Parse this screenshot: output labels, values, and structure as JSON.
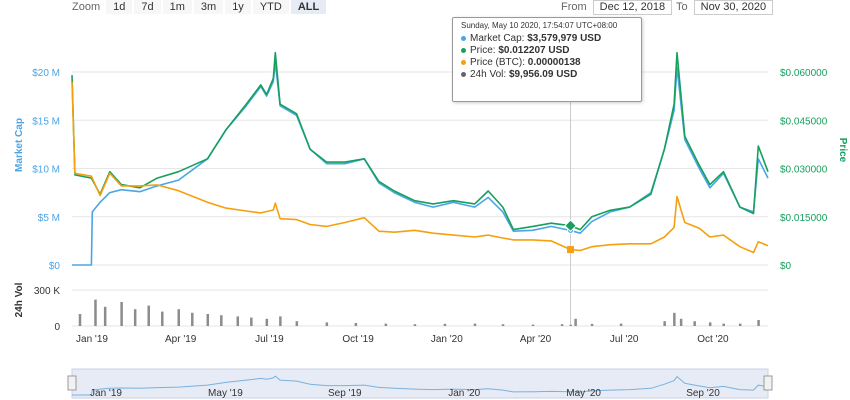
{
  "toolbar": {
    "zoom_label": "Zoom",
    "zoom_buttons": [
      "1d",
      "7d",
      "1m",
      "3m",
      "1y",
      "YTD",
      "ALL"
    ],
    "active": "ALL",
    "from_label": "From",
    "from_value": "Dec 12, 2018",
    "to_label": "To",
    "to_value": "Nov 30, 2020"
  },
  "tooltip": {
    "date": "Sunday, May 10 2020, 17:54:07 UTC+08:00",
    "rows": [
      {
        "label": "Market Cap:",
        "value": "$3,579,979 USD",
        "color": "#4ba5e5"
      },
      {
        "label": "Price:",
        "value": "$0.012207 USD",
        "color": "#16a05d"
      },
      {
        "label": "Price (BTC):",
        "value": "0.00000138",
        "color": "#f5a00e"
      },
      {
        "label": "24h Vol:",
        "value": "$9,956.09 USD",
        "color": "#666666"
      }
    ]
  },
  "chart_data": {
    "type": "line",
    "x_ticks": [
      "Jan '19",
      "Apr '19",
      "Jul '19",
      "Oct '19",
      "Jan '20",
      "Apr '20",
      "Jul '20",
      "Oct '20"
    ],
    "navigator_ticks": [
      "Jan '19",
      "May '19",
      "Sep '19",
      "Jan '20",
      "May '20",
      "Sep '20"
    ],
    "y_left": {
      "label": "Market Cap",
      "ticks": [
        "$0",
        "$5 M",
        "$10 M",
        "$15 M",
        "$20 M"
      ],
      "range": [
        0,
        20000000
      ],
      "color": "#4ba5e5"
    },
    "y_right": {
      "label": "Price",
      "ticks": [
        "$0",
        "$0.015000",
        "$0.030000",
        "$0.045000",
        "$0.060000"
      ],
      "range": [
        0,
        0.06
      ],
      "color": "#16a05d"
    },
    "volume": {
      "label": "24h Vol",
      "ticks": [
        "0",
        "300 K"
      ],
      "range": [
        0,
        400000
      ]
    },
    "series": [
      {
        "name": "Market Cap",
        "color": "#4ba5e5",
        "axis": "left",
        "points": [
          [
            "2018-12-12",
            0
          ],
          [
            "2019-01-01",
            0
          ],
          [
            "2019-01-02",
            5500000
          ],
          [
            "2019-01-10",
            6500000
          ],
          [
            "2019-01-20",
            7500000
          ],
          [
            "2019-02-01",
            7800000
          ],
          [
            "2019-02-20",
            7600000
          ],
          [
            "2019-03-10",
            8200000
          ],
          [
            "2019-04-01",
            8800000
          ],
          [
            "2019-05-01",
            11000000
          ],
          [
            "2019-05-20",
            14000000
          ],
          [
            "2019-06-10",
            16500000
          ],
          [
            "2019-06-25",
            18500000
          ],
          [
            "2019-07-01",
            17500000
          ],
          [
            "2019-07-08",
            19000000
          ],
          [
            "2019-07-10",
            21000000
          ],
          [
            "2019-07-15",
            16500000
          ],
          [
            "2019-08-01",
            15500000
          ],
          [
            "2019-08-15",
            12000000
          ],
          [
            "2019-09-01",
            10500000
          ],
          [
            "2019-09-20",
            10500000
          ],
          [
            "2019-10-10",
            11000000
          ],
          [
            "2019-10-25",
            8500000
          ],
          [
            "2019-11-10",
            7500000
          ],
          [
            "2019-12-01",
            6500000
          ],
          [
            "2019-12-20",
            6000000
          ],
          [
            "2020-01-10",
            6500000
          ],
          [
            "2020-02-01",
            6000000
          ],
          [
            "2020-02-15",
            7000000
          ],
          [
            "2020-03-01",
            5500000
          ],
          [
            "2020-03-12",
            3500000
          ],
          [
            "2020-04-01",
            3600000
          ],
          [
            "2020-04-20",
            4000000
          ],
          [
            "2020-05-10",
            3580000
          ],
          [
            "2020-05-20",
            3300000
          ],
          [
            "2020-06-01",
            4500000
          ],
          [
            "2020-06-20",
            5500000
          ],
          [
            "2020-07-10",
            6000000
          ],
          [
            "2020-08-01",
            7500000
          ],
          [
            "2020-08-15",
            12000000
          ],
          [
            "2020-08-25",
            16000000
          ],
          [
            "2020-08-28",
            20500000
          ],
          [
            "2020-09-05",
            13000000
          ],
          [
            "2020-09-20",
            10000000
          ],
          [
            "2020-10-01",
            8000000
          ],
          [
            "2020-10-15",
            9500000
          ],
          [
            "2020-11-01",
            6000000
          ],
          [
            "2020-11-15",
            5500000
          ],
          [
            "2020-11-20",
            11000000
          ],
          [
            "2020-11-30",
            9000000
          ]
        ]
      },
      {
        "name": "Price",
        "color": "#16a05d",
        "axis": "right",
        "points": [
          [
            "2018-12-12",
            0.059
          ],
          [
            "2018-12-15",
            0.028
          ],
          [
            "2019-01-01",
            0.027
          ],
          [
            "2019-01-10",
            0.022
          ],
          [
            "2019-01-20",
            0.029
          ],
          [
            "2019-02-01",
            0.025
          ],
          [
            "2019-02-20",
            0.024
          ],
          [
            "2019-03-10",
            0.027
          ],
          [
            "2019-04-01",
            0.029
          ],
          [
            "2019-05-01",
            0.033
          ],
          [
            "2019-05-20",
            0.042
          ],
          [
            "2019-06-10",
            0.05
          ],
          [
            "2019-06-25",
            0.056
          ],
          [
            "2019-07-01",
            0.053
          ],
          [
            "2019-07-08",
            0.058
          ],
          [
            "2019-07-10",
            0.066
          ],
          [
            "2019-07-15",
            0.05
          ],
          [
            "2019-08-01",
            0.047
          ],
          [
            "2019-08-15",
            0.036
          ],
          [
            "2019-09-01",
            0.032
          ],
          [
            "2019-09-20",
            0.032
          ],
          [
            "2019-10-10",
            0.033
          ],
          [
            "2019-10-25",
            0.026
          ],
          [
            "2019-11-10",
            0.023
          ],
          [
            "2019-12-01",
            0.02
          ],
          [
            "2019-12-20",
            0.019
          ],
          [
            "2020-01-10",
            0.02
          ],
          [
            "2020-02-01",
            0.019
          ],
          [
            "2020-02-15",
            0.023
          ],
          [
            "2020-03-01",
            0.018
          ],
          [
            "2020-03-12",
            0.011
          ],
          [
            "2020-04-01",
            0.012
          ],
          [
            "2020-04-20",
            0.013
          ],
          [
            "2020-05-10",
            0.012207
          ],
          [
            "2020-05-20",
            0.011
          ],
          [
            "2020-06-01",
            0.015
          ],
          [
            "2020-06-20",
            0.017
          ],
          [
            "2020-07-10",
            0.018
          ],
          [
            "2020-08-01",
            0.022
          ],
          [
            "2020-08-15",
            0.036
          ],
          [
            "2020-08-25",
            0.05
          ],
          [
            "2020-08-28",
            0.066
          ],
          [
            "2020-09-05",
            0.04
          ],
          [
            "2020-09-20",
            0.031
          ],
          [
            "2020-10-01",
            0.025
          ],
          [
            "2020-10-15",
            0.029
          ],
          [
            "2020-11-01",
            0.018
          ],
          [
            "2020-11-15",
            0.016
          ],
          [
            "2020-11-20",
            0.037
          ],
          [
            "2020-11-30",
            0.029
          ]
        ]
      },
      {
        "name": "Price (BTC)",
        "color": "#f5a00e",
        "axis": "btc",
        "points": [
          [
            "2018-12-12",
            0.019
          ],
          [
            "2018-12-15",
            0.0095
          ],
          [
            "2019-01-01",
            0.0092
          ],
          [
            "2019-01-10",
            0.0072
          ],
          [
            "2019-01-20",
            0.0095
          ],
          [
            "2019-02-01",
            0.0082
          ],
          [
            "2019-02-20",
            0.0082
          ],
          [
            "2019-03-10",
            0.0083
          ],
          [
            "2019-04-01",
            0.0077
          ],
          [
            "2019-05-01",
            0.0065
          ],
          [
            "2019-05-20",
            0.0059
          ],
          [
            "2019-06-10",
            0.0056
          ],
          [
            "2019-06-25",
            0.0054
          ],
          [
            "2019-07-08",
            0.0057
          ],
          [
            "2019-07-10",
            0.0064
          ],
          [
            "2019-07-15",
            0.0048
          ],
          [
            "2019-08-01",
            0.0047
          ],
          [
            "2019-08-15",
            0.0042
          ],
          [
            "2019-09-01",
            0.004
          ],
          [
            "2019-09-20",
            0.0044
          ],
          [
            "2019-10-10",
            0.0049
          ],
          [
            "2019-10-25",
            0.0035
          ],
          [
            "2019-11-10",
            0.0034
          ],
          [
            "2019-12-01",
            0.0036
          ],
          [
            "2019-12-20",
            0.0033
          ],
          [
            "2020-01-10",
            0.0031
          ],
          [
            "2020-02-01",
            0.0029
          ],
          [
            "2020-02-15",
            0.0031
          ],
          [
            "2020-03-01",
            0.0028
          ],
          [
            "2020-03-12",
            0.0026
          ],
          [
            "2020-04-01",
            0.0026
          ],
          [
            "2020-04-20",
            0.0025
          ],
          [
            "2020-05-10",
            0.0016
          ],
          [
            "2020-05-20",
            0.0015
          ],
          [
            "2020-06-01",
            0.0019
          ],
          [
            "2020-06-20",
            0.0021
          ],
          [
            "2020-07-10",
            0.0022
          ],
          [
            "2020-08-01",
            0.0022
          ],
          [
            "2020-08-15",
            0.0029
          ],
          [
            "2020-08-25",
            0.0039
          ],
          [
            "2020-08-28",
            0.0071
          ],
          [
            "2020-09-05",
            0.0044
          ],
          [
            "2020-09-20",
            0.0038
          ],
          [
            "2020-10-01",
            0.0029
          ],
          [
            "2020-10-15",
            0.0031
          ],
          [
            "2020-11-01",
            0.0019
          ],
          [
            "2020-11-15",
            0.0013
          ],
          [
            "2020-11-20",
            0.0024
          ],
          [
            "2020-11-30",
            0.002
          ]
        ]
      }
    ],
    "volume_bars": [
      [
        "2018-12-20",
        100000
      ],
      [
        "2019-01-05",
        220000
      ],
      [
        "2019-01-15",
        160000
      ],
      [
        "2019-02-01",
        200000
      ],
      [
        "2019-02-15",
        140000
      ],
      [
        "2019-03-01",
        170000
      ],
      [
        "2019-03-15",
        120000
      ],
      [
        "2019-04-01",
        140000
      ],
      [
        "2019-04-15",
        110000
      ],
      [
        "2019-05-01",
        100000
      ],
      [
        "2019-05-15",
        90000
      ],
      [
        "2019-06-01",
        80000
      ],
      [
        "2019-06-15",
        70000
      ],
      [
        "2019-07-01",
        60000
      ],
      [
        "2019-07-15",
        80000
      ],
      [
        "2019-08-01",
        40000
      ],
      [
        "2019-09-01",
        30000
      ],
      [
        "2019-10-01",
        25000
      ],
      [
        "2019-11-01",
        20000
      ],
      [
        "2019-12-01",
        15000
      ],
      [
        "2020-01-01",
        18000
      ],
      [
        "2020-02-01",
        20000
      ],
      [
        "2020-03-01",
        15000
      ],
      [
        "2020-04-01",
        12000
      ],
      [
        "2020-05-01",
        15000
      ],
      [
        "2020-05-10",
        9956
      ],
      [
        "2020-05-15",
        60000
      ],
      [
        "2020-06-01",
        18000
      ],
      [
        "2020-07-01",
        20000
      ],
      [
        "2020-08-15",
        40000
      ],
      [
        "2020-08-25",
        110000
      ],
      [
        "2020-09-01",
        60000
      ],
      [
        "2020-09-15",
        40000
      ],
      [
        "2020-10-01",
        30000
      ],
      [
        "2020-10-15",
        20000
      ],
      [
        "2020-11-01",
        20000
      ],
      [
        "2020-11-20",
        50000
      ]
    ],
    "highlight_date": "2020-05-10"
  }
}
